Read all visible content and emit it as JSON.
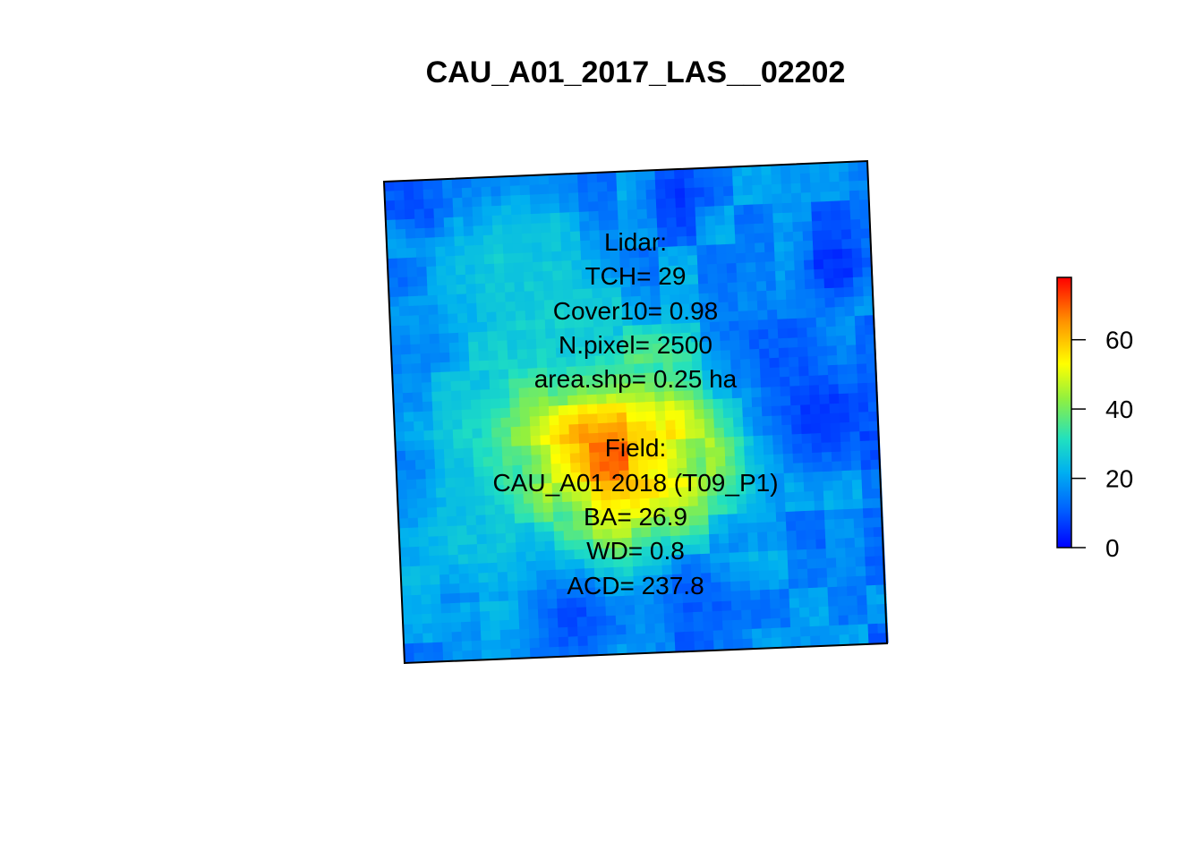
{
  "chart_data": {
    "type": "heatmap",
    "title": "CAU_A01_2017_LAS__02202",
    "xlabel": "",
    "ylabel": "",
    "grid": false,
    "legend": "right",
    "colorbar": {
      "min": 0,
      "max": 78,
      "ticks": [
        0,
        20,
        40,
        60
      ],
      "tick_labels": [
        "0",
        "20",
        "40",
        "60"
      ],
      "palette": [
        "#0000ff",
        "#0080ff",
        "#00d0d0",
        "#40e0a0",
        "#b0f020",
        "#ffff00",
        "#ff9000",
        "#ff0000"
      ]
    },
    "annotations": {
      "lidar": [
        "Lidar:",
        "TCH= 29",
        "Cover10= 0.98",
        "N.pixel= 2500",
        "area.shp= 0.25 ha"
      ],
      "field": [
        "Field:",
        "CAU_A01 2018 (T09_P1)",
        "BA= 26.9",
        "WD= 0.8",
        "ACD= 237.8"
      ]
    },
    "grid_rows": 50,
    "grid_cols": 50,
    "hotspots": [
      {
        "row": 0.08,
        "col": 0.08,
        "value": 5,
        "radius": 0.06
      },
      {
        "row": 0.06,
        "col": 0.6,
        "value": 6,
        "radius": 0.07
      },
      {
        "row": 0.22,
        "col": 0.92,
        "value": 5,
        "radius": 0.08
      },
      {
        "row": 0.52,
        "col": 0.88,
        "value": 5,
        "radius": 0.12
      },
      {
        "row": 0.4,
        "col": 0.8,
        "value": 10,
        "radius": 0.1
      },
      {
        "row": 0.92,
        "col": 0.35,
        "value": 8,
        "radius": 0.1
      },
      {
        "row": 0.9,
        "col": 0.6,
        "value": 10,
        "radius": 0.1
      },
      {
        "row": 0.3,
        "col": 0.35,
        "value": 28,
        "radius": 0.14
      },
      {
        "row": 0.18,
        "col": 0.25,
        "value": 27,
        "radius": 0.16
      },
      {
        "row": 0.75,
        "col": 0.15,
        "value": 25,
        "radius": 0.14
      }
    ],
    "peak": {
      "row": 0.58,
      "col": 0.45,
      "value": 65
    }
  }
}
